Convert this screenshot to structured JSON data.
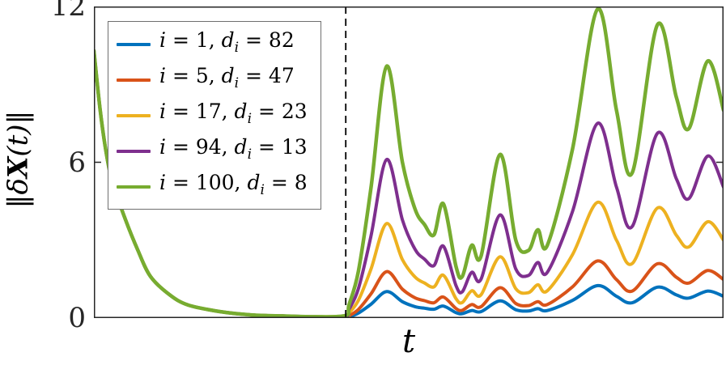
{
  "figure": {
    "background": "#ffffff",
    "axis_color": "#262626",
    "tick_label_color": "#262626",
    "dashed_line_color": "#000000",
    "legend_border_color": "#6f6f6f"
  },
  "ylabel_parts": {
    "open": "‖",
    "pre": "δ",
    "bold": "X",
    "post": "(t)",
    "close": "‖",
    "full": "‖δX(t)‖"
  },
  "xlabel": "t",
  "chart_data": {
    "type": "line",
    "title": "",
    "xlabel": "t",
    "ylabel": "‖δX(t)‖",
    "xlim": [
      0,
      1
    ],
    "ylim": [
      0,
      12
    ],
    "yticks": [
      0,
      6,
      12
    ],
    "xticks": [],
    "grid": false,
    "legend_position": "top-left",
    "dashed_vline_x": 0.4,
    "x": [
      0,
      0.01,
      0.02,
      0.03,
      0.05,
      0.07,
      0.09,
      0.12,
      0.15,
      0.2,
      0.25,
      0.3,
      0.35,
      0.4,
      0.405,
      0.42,
      0.44,
      0.465,
      0.49,
      0.51,
      0.525,
      0.54,
      0.555,
      0.575,
      0.585,
      0.6,
      0.615,
      0.645,
      0.67,
      0.69,
      0.705,
      0.72,
      0.76,
      0.8,
      0.83,
      0.855,
      0.895,
      0.925,
      0.945,
      0.975,
      1.0
    ],
    "series": [
      {
        "name": "i = 1, d_i = 82",
        "label_parts": {
          "var1": "i",
          "mid": " = 1, ",
          "var2": "d",
          "sub": "i",
          "tail": " = 82"
        },
        "color": "#0072BD",
        "values": [
          10.3,
          8.0,
          6.3,
          5.2,
          3.8,
          2.6,
          1.6,
          0.9,
          0.5,
          0.25,
          0.12,
          0.08,
          0.05,
          0.05,
          0.05,
          0.19,
          0.53,
          1.02,
          0.63,
          0.44,
          0.38,
          0.34,
          0.46,
          0.21,
          0.17,
          0.29,
          0.25,
          0.66,
          0.32,
          0.27,
          0.36,
          0.29,
          0.68,
          1.25,
          0.84,
          0.59,
          1.19,
          0.89,
          0.77,
          1.04,
          0.84
        ]
      },
      {
        "name": "i = 5, d_i = 47",
        "label_parts": {
          "var1": "i",
          "mid": " = 5, ",
          "var2": "d",
          "sub": "i",
          "tail": " = 47"
        },
        "color": "#D95319",
        "values": [
          10.3,
          8.0,
          6.3,
          5.2,
          3.8,
          2.6,
          1.6,
          0.9,
          0.5,
          0.25,
          0.12,
          0.08,
          0.05,
          0.06,
          0.09,
          0.33,
          0.93,
          1.79,
          1.11,
          0.78,
          0.67,
          0.59,
          0.81,
          0.37,
          0.3,
          0.52,
          0.44,
          1.17,
          0.56,
          0.48,
          0.63,
          0.52,
          1.2,
          2.2,
          1.48,
          1.04,
          2.09,
          1.57,
          1.35,
          1.83,
          1.48
        ]
      },
      {
        "name": "i = 17, d_i = 23",
        "label_parts": {
          "var1": "i",
          "mid": " = 17, ",
          "var2": "d",
          "sub": "i",
          "tail": " = 23"
        },
        "color": "#EDB120",
        "values": [
          10.3,
          8.0,
          6.3,
          5.2,
          3.8,
          2.6,
          1.6,
          0.9,
          0.5,
          0.25,
          0.12,
          0.08,
          0.05,
          0.07,
          0.19,
          0.68,
          1.88,
          3.64,
          2.25,
          1.58,
          1.35,
          1.2,
          1.65,
          0.75,
          0.6,
          1.05,
          0.9,
          2.36,
          1.13,
          0.98,
          1.28,
          1.05,
          2.44,
          4.46,
          3.0,
          2.1,
          4.24,
          3.19,
          2.74,
          3.71,
          3.0
        ]
      },
      {
        "name": "i = 94, d_i = 13",
        "label_parts": {
          "var1": "i",
          "mid": " = 94, ",
          "var2": "d",
          "sub": "i",
          "tail": " = 13"
        },
        "color": "#7E2F8E",
        "values": [
          10.3,
          8.0,
          6.3,
          5.2,
          3.8,
          2.6,
          1.6,
          0.9,
          0.5,
          0.25,
          0.12,
          0.08,
          0.05,
          0.08,
          0.32,
          1.13,
          3.15,
          6.11,
          3.78,
          2.65,
          2.27,
          2.02,
          2.77,
          1.26,
          1.01,
          1.76,
          1.51,
          3.97,
          1.89,
          1.64,
          2.14,
          1.76,
          4.1,
          7.5,
          5.04,
          3.53,
          7.12,
          5.36,
          4.6,
          6.24,
          5.04
        ]
      },
      {
        "name": "i = 100, d_i = 8",
        "label_parts": {
          "var1": "i",
          "mid": " = 100, ",
          "var2": "d",
          "sub": "i",
          "tail": " = 8"
        },
        "color": "#77AC30",
        "values": [
          10.3,
          8.0,
          6.3,
          5.2,
          3.8,
          2.6,
          1.6,
          0.9,
          0.5,
          0.25,
          0.12,
          0.08,
          0.05,
          0.1,
          0.5,
          1.8,
          5.0,
          9.7,
          6.0,
          4.2,
          3.6,
          3.2,
          4.4,
          2.0,
          1.6,
          2.8,
          2.4,
          6.3,
          3.0,
          2.6,
          3.4,
          2.8,
          6.5,
          11.9,
          8.0,
          5.6,
          11.3,
          8.5,
          7.3,
          9.9,
          8.0
        ]
      }
    ]
  }
}
